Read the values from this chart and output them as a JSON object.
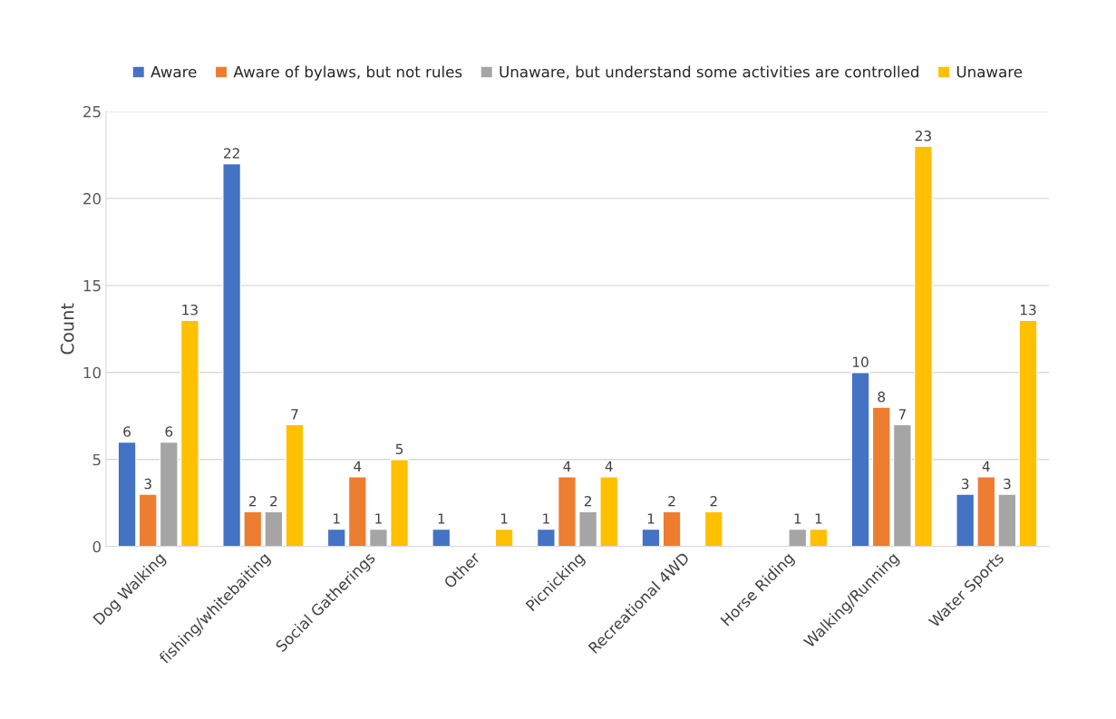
{
  "chart_data": {
    "type": "bar",
    "ylabel": "Count",
    "categories": [
      "Dog Walking",
      "fishing/whitebaiting",
      "Social Gatherings",
      "Other",
      "Picnicking",
      "Recreational 4WD",
      "Horse Riding",
      "Walking/Running",
      "Water Sports"
    ],
    "series": [
      {
        "name": "Aware",
        "color": "#4472c4",
        "values": [
          6,
          22,
          1,
          1,
          1,
          1,
          null,
          10,
          3
        ]
      },
      {
        "name": "Aware of bylaws, but not rules",
        "color": "#ed7d31",
        "values": [
          3,
          2,
          4,
          null,
          4,
          2,
          null,
          8,
          4
        ]
      },
      {
        "name": "Unaware, but understand some activities are controlled",
        "color": "#a5a5a5",
        "values": [
          6,
          2,
          1,
          null,
          2,
          null,
          1,
          7,
          3
        ]
      },
      {
        "name": "Unaware",
        "color": "#ffc000",
        "values": [
          13,
          7,
          5,
          1,
          4,
          2,
          1,
          23,
          13
        ]
      }
    ],
    "ylim": [
      0,
      25
    ],
    "yticks": [
      0,
      5,
      10,
      15,
      20,
      25
    ],
    "grid": "y",
    "legend": "top",
    "data_labels": true
  }
}
